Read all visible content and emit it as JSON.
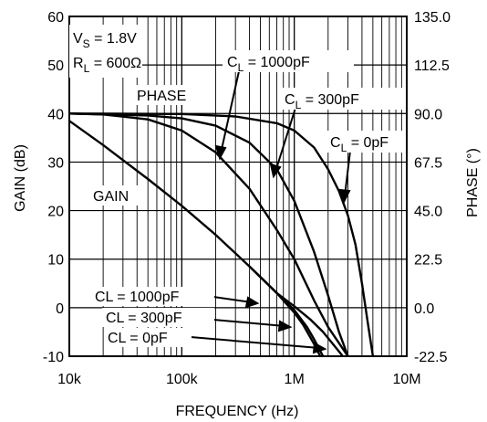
{
  "chart_data": {
    "type": "line",
    "xlabel": "FREQUENCY (Hz)",
    "ylabel": "GAIN (dB)",
    "y2label": "PHASE (°)",
    "x_scale": "log",
    "xlim": [
      10000,
      10000000
    ],
    "ylim": [
      -10,
      60
    ],
    "y2lim": [
      -22.5,
      135.0
    ],
    "grid": true,
    "x_ticks": [
      {
        "value": 10000,
        "label": "10k"
      },
      {
        "value": 100000,
        "label": "100k"
      },
      {
        "value": 1000000,
        "label": "1M"
      },
      {
        "value": 10000000,
        "label": "10M"
      }
    ],
    "y_ticks": [
      {
        "value": -10,
        "label": "-10"
      },
      {
        "value": 0,
        "label": "0"
      },
      {
        "value": 10,
        "label": "10"
      },
      {
        "value": 20,
        "label": "20"
      },
      {
        "value": 30,
        "label": "30"
      },
      {
        "value": 40,
        "label": "40"
      },
      {
        "value": 50,
        "label": "50"
      },
      {
        "value": 60,
        "label": "60"
      }
    ],
    "y2_ticks": [
      {
        "value": -22.5,
        "label": "-22.5"
      },
      {
        "value": 0.0,
        "label": "0.0"
      },
      {
        "value": 22.5,
        "label": "22.5"
      },
      {
        "value": 45.0,
        "label": "45.0"
      },
      {
        "value": 67.5,
        "label": "67.5"
      },
      {
        "value": 90.0,
        "label": "90.0"
      },
      {
        "value": 112.5,
        "label": "112.5"
      },
      {
        "value": 135.0,
        "label": "135.0"
      }
    ],
    "conditions": {
      "vs": {
        "main": "V",
        "sub": "S",
        "rest": " = 1.8V"
      },
      "rl": {
        "main": "R",
        "sub": "L",
        "rest": " = 600Ω"
      }
    },
    "group_labels": {
      "phase": "PHASE",
      "gain": "GAIN"
    },
    "series": [
      {
        "group": "gain",
        "label": "CL = 0pF",
        "x": [
          10000,
          20000,
          50000,
          100000,
          200000,
          400000,
          700000,
          1000000,
          1200000,
          1500000,
          1700000
        ],
        "y": [
          38.5,
          33.5,
          26.5,
          21,
          15,
          8.5,
          3,
          -1,
          -3.5,
          -7.5,
          -10
        ]
      },
      {
        "group": "gain",
        "label": "CL = 300pF",
        "x": [
          400000,
          700000,
          1000000,
          1300000,
          1500000,
          1800000
        ],
        "y": [
          8.5,
          3,
          -0.5,
          -4,
          -6.5,
          -10
        ]
      },
      {
        "group": "gain",
        "label": "CL = 1000pF",
        "x": [
          400000,
          700000,
          1000000,
          1400000,
          1800000,
          2300000,
          2700000
        ],
        "y": [
          8.5,
          3,
          0.3,
          -2.5,
          -5,
          -8,
          -10
        ]
      },
      {
        "group": "phase",
        "label": "C_L = 1000pF",
        "x": [
          10000,
          20000,
          50000,
          100000,
          200000,
          400000,
          700000,
          1000000,
          1500000,
          2000000,
          3000000
        ],
        "y": [
          40,
          39.8,
          38.8,
          36.5,
          32,
          24.5,
          16,
          10,
          1.5,
          -4,
          -10
        ]
      },
      {
        "group": "phase",
        "label": "C_L = 300pF",
        "x": [
          10000,
          50000,
          100000,
          200000,
          400000,
          700000,
          1000000,
          1500000,
          2000000,
          2500000,
          3000000
        ],
        "y": [
          40,
          39.6,
          39,
          37.5,
          34,
          28.5,
          22,
          11.5,
          2.5,
          -5,
          -10
        ]
      },
      {
        "group": "phase",
        "label": "C_L = 0pF",
        "x": [
          10000,
          100000,
          300000,
          700000,
          1000000,
          1500000,
          2000000,
          2500000,
          3000000,
          3500000,
          4000000,
          4500000,
          5000000
        ],
        "y": [
          40,
          39.9,
          39.4,
          38,
          36.5,
          33,
          28.5,
          24,
          19,
          13,
          5,
          -3,
          -10
        ]
      }
    ],
    "annotations": [
      {
        "group": "phase",
        "text": {
          "main": "C",
          "sub": "L",
          "rest": " = 1000pF"
        }
      },
      {
        "group": "phase",
        "text": {
          "main": "C",
          "sub": "L",
          "rest": " = 300pF"
        }
      },
      {
        "group": "phase",
        "text": {
          "main": "C",
          "sub": "L",
          "rest": " = 0pF"
        }
      },
      {
        "group": "gain",
        "text": "CL = 1000pF"
      },
      {
        "group": "gain",
        "text": "CL = 300pF"
      },
      {
        "group": "gain",
        "text": "CL = 0pF"
      }
    ]
  }
}
